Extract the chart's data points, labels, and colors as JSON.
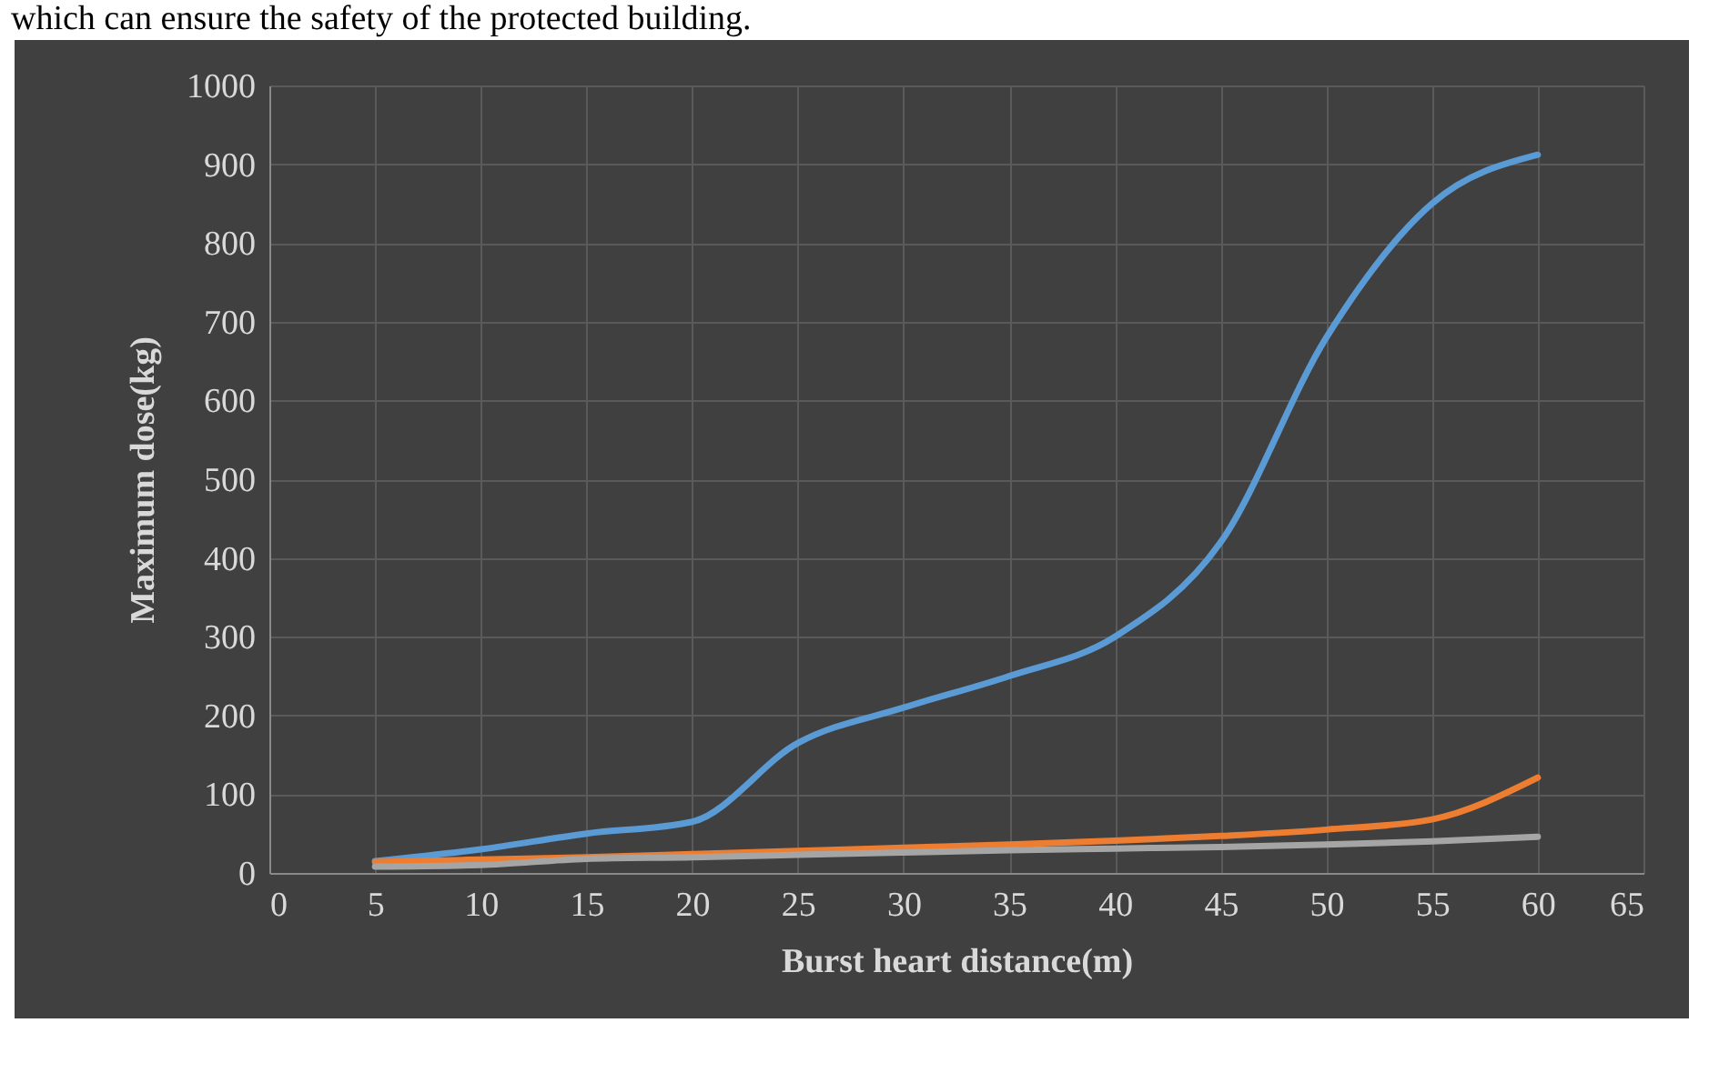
{
  "chart_data": {
    "type": "line",
    "xlabel": "Burst heart distance(m)",
    "ylabel": "Maximum dose(kg)",
    "annotations": [
      "which can ensure the safety of the protected building."
    ],
    "x": [
      5,
      10,
      15,
      20,
      25,
      30,
      35,
      40,
      45,
      50,
      55,
      60
    ],
    "series": [
      {
        "color": "#5b9bd5",
        "values": [
          15,
          30,
          50,
          65,
          165,
          210,
          250,
          300,
          420,
          680,
          850,
          912
        ]
      },
      {
        "color": "#ed7d31",
        "values": [
          14,
          17,
          20,
          24,
          28,
          32,
          36,
          41,
          47,
          55,
          68,
          121
        ]
      },
      {
        "color": "#a5a5a5",
        "values": [
          8,
          10,
          18,
          20,
          23,
          26,
          29,
          31,
          33,
          36,
          40,
          46
        ]
      }
    ],
    "xlim": [
      0,
      65
    ],
    "xticks": [
      0,
      5,
      10,
      15,
      20,
      25,
      30,
      35,
      40,
      45,
      50,
      55,
      60,
      65
    ],
    "ylim": [
      0,
      1000
    ],
    "yticks": [
      0,
      100,
      200,
      300,
      400,
      500,
      600,
      700,
      800,
      900,
      1000
    ],
    "grid": true,
    "legend": false,
    "marker": "none",
    "line_style": "solid"
  }
}
